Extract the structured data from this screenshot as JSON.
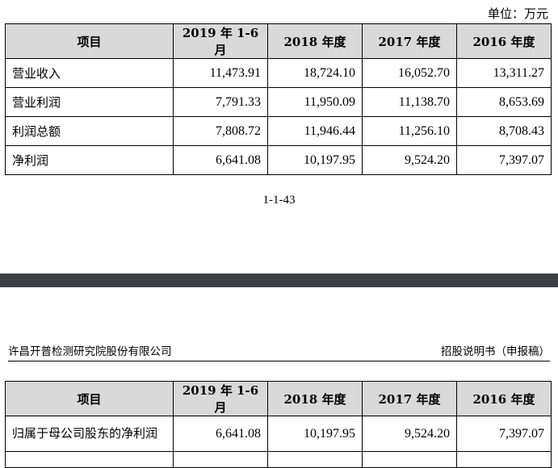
{
  "unit_label": "单位：万元",
  "table1": {
    "headers": [
      "项目",
      "2019 年 1-6 月",
      "2018 年度",
      "2017 年度",
      "2016 年度"
    ],
    "rows": [
      {
        "label": "营业收入",
        "values": [
          "11,473.91",
          "18,724.10",
          "16,052.70",
          "13,311.27"
        ]
      },
      {
        "label": "营业利润",
        "values": [
          "7,791.33",
          "11,950.09",
          "11,138.70",
          "8,653.69"
        ]
      },
      {
        "label": "利润总额",
        "values": [
          "7,808.72",
          "11,946.44",
          "11,256.10",
          "8,708.43"
        ]
      },
      {
        "label": "净利润",
        "values": [
          "6,641.08",
          "10,197.95",
          "9,524.20",
          "7,397.07"
        ]
      }
    ]
  },
  "page_number": "1-1-43",
  "header": {
    "company": "许昌开普检测研究院股份有限公司",
    "document": "招股说明书（申报稿）"
  },
  "table2": {
    "headers": [
      "项目",
      "2019 年 1-6 月",
      "2018 年度",
      "2017 年度",
      "2016 年度"
    ],
    "rows": [
      {
        "label": "归属于母公司股东的净利润",
        "values": [
          "6,641.08",
          "10,197.95",
          "9,524.20",
          "7,397.07"
        ]
      }
    ]
  }
}
